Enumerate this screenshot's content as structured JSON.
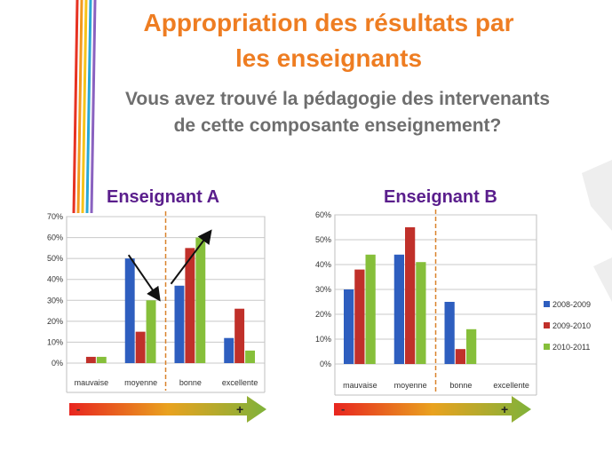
{
  "slide": {
    "title_line1": "Appropriation des résultats par",
    "title_line2": "les enseignants",
    "question_line1": "Vous avez trouvé la pédagogie des intervenants",
    "question_line2": "de cette composante enseignement?"
  },
  "colors": {
    "title": "#ee7d22",
    "question": "#6e6e6e",
    "chart_heading": "#5a1e8c",
    "series": [
      "#2e5ebf",
      "#c0302a",
      "#86bf3a"
    ],
    "divider": "#d9822b",
    "deco_lines": [
      "#e63222",
      "#f39a1f",
      "#f7c31a",
      "#2aa8d6",
      "#8a62c0"
    ]
  },
  "scale_labels": {
    "minus": "-",
    "plus": "+"
  },
  "chart_data": [
    {
      "type": "bar",
      "title": "Enseignant A",
      "categories": [
        "mauvaise",
        "moyenne",
        "bonne",
        "excellente"
      ],
      "series": [
        {
          "values": [
            0,
            50,
            37,
            12
          ]
        },
        {
          "values": [
            3,
            15,
            55,
            26
          ]
        },
        {
          "values": [
            3,
            30,
            60,
            6
          ]
        }
      ],
      "ylim": [
        0,
        70
      ],
      "yticks": [
        "0%",
        "10%",
        "20%",
        "30%",
        "40%",
        "50%",
        "60%",
        "70%"
      ],
      "grid": true,
      "legend": "none",
      "annotations": [
        "arrow down over moyenne",
        "arrow up over bonne",
        "dashed divider between moyenne and bonne"
      ]
    },
    {
      "type": "bar",
      "title": "Enseignant B",
      "categories": [
        "mauvaise",
        "moyenne",
        "bonne",
        "excellente"
      ],
      "series": [
        {
          "name": "2008-2009",
          "values": [
            30,
            44,
            25,
            0
          ]
        },
        {
          "name": "2009-2010",
          "values": [
            38,
            55,
            6,
            0
          ]
        },
        {
          "name": "2010-2011",
          "values": [
            44,
            41,
            14,
            0
          ]
        }
      ],
      "ylim": [
        0,
        60
      ],
      "yticks": [
        "0%",
        "10%",
        "20%",
        "30%",
        "40%",
        "50%",
        "60%"
      ],
      "grid": true,
      "legend": "right",
      "annotations": [
        "dashed divider between moyenne and bonne"
      ]
    }
  ]
}
